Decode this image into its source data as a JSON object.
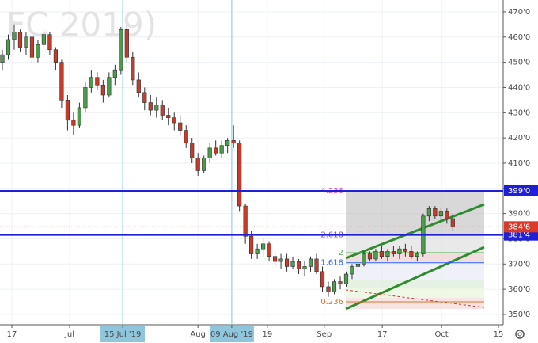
{
  "chart_data": {
    "type": "candlestick",
    "watermark": "FC 2019)",
    "x": [
      0,
      1,
      2,
      3,
      4,
      5,
      6,
      7,
      8,
      9,
      10,
      11,
      12,
      13,
      14,
      15,
      16,
      17,
      18,
      19,
      20,
      21,
      22,
      23,
      24,
      25,
      26,
      27,
      28,
      29,
      30,
      31,
      32,
      33,
      34,
      35,
      36,
      37,
      38,
      39,
      40,
      41,
      42,
      43,
      44,
      45,
      46,
      47,
      48,
      49,
      50,
      51,
      52,
      53,
      54,
      55,
      56,
      57,
      58,
      59,
      60,
      61,
      62,
      63,
      64,
      65,
      66,
      67,
      68,
      69,
      70,
      71,
      72,
      73,
      74,
      75,
      76
    ],
    "open": [
      450,
      453,
      459,
      462,
      456,
      460,
      452,
      457,
      461,
      455,
      450,
      435,
      427,
      425,
      432,
      440,
      444,
      441,
      437,
      444,
      447,
      463,
      452,
      443,
      438,
      434,
      431,
      433,
      429,
      428,
      426,
      423,
      418,
      412,
      407,
      412,
      416,
      414,
      417,
      419,
      418,
      393,
      381,
      374,
      376,
      378,
      373,
      371,
      372,
      369,
      371,
      368,
      369,
      372,
      367,
      361,
      359,
      363,
      362,
      366,
      369,
      370,
      374,
      372,
      375,
      373,
      375,
      374,
      376,
      375,
      373,
      374,
      389,
      392,
      389,
      391,
      388
    ],
    "high": [
      455,
      461,
      465,
      463,
      462,
      461,
      459,
      463,
      462,
      456,
      451,
      437,
      430,
      434,
      442,
      447,
      446,
      443,
      446,
      449,
      464,
      465,
      454,
      446,
      440,
      437,
      436,
      435,
      432,
      430,
      429,
      425,
      420,
      414,
      413,
      418,
      419,
      419,
      420,
      425,
      419,
      394,
      383,
      378,
      380,
      379,
      375,
      374,
      374,
      373,
      372,
      371,
      373,
      374,
      369,
      363,
      364,
      365,
      367,
      370,
      372,
      375,
      375,
      376,
      377,
      376,
      377,
      377,
      378,
      377,
      375,
      390,
      393,
      393,
      392,
      392,
      390
    ],
    "low": [
      447,
      451,
      455,
      454,
      453,
      450,
      450,
      455,
      453,
      447,
      432,
      423,
      421,
      424,
      430,
      438,
      439,
      434,
      436,
      441,
      445,
      450,
      441,
      436,
      431,
      429,
      428,
      427,
      425,
      423,
      421,
      416,
      410,
      405,
      406,
      410,
      413,
      412,
      414,
      416,
      391,
      378,
      372,
      372,
      373,
      371,
      369,
      368,
      367,
      368,
      366,
      365,
      367,
      366,
      359,
      357,
      358,
      360,
      361,
      364,
      367,
      369,
      371,
      371,
      372,
      371,
      373,
      372,
      373,
      372,
      371,
      373,
      387,
      388,
      387,
      386,
      383
    ],
    "close": [
      453,
      459,
      462,
      456,
      460,
      452,
      457,
      461,
      455,
      450,
      435,
      427,
      425,
      432,
      440,
      444,
      441,
      437,
      444,
      447,
      463,
      452,
      443,
      438,
      434,
      431,
      433,
      429,
      428,
      426,
      423,
      418,
      412,
      407,
      412,
      416,
      414,
      417,
      419,
      418,
      393,
      381,
      374,
      376,
      378,
      373,
      371,
      372,
      369,
      371,
      368,
      369,
      372,
      367,
      361,
      359,
      363,
      362,
      366,
      369,
      370,
      374,
      372,
      375,
      373,
      375,
      374,
      376,
      375,
      373,
      374,
      389,
      392,
      389,
      391,
      388,
      384.75
    ],
    "up_color": "#4e9a4e",
    "down_color": "#c33b2b",
    "xlim": [
      -0.4,
      84.5
    ],
    "xticks": [
      {
        "value": 1.6,
        "label": "17"
      },
      {
        "value": 11.35,
        "label": "Jul"
      },
      {
        "value": 20.3,
        "label": "15 Jul '19",
        "highlight": true
      },
      {
        "value": 33,
        "label": "Aug"
      },
      {
        "value": 38.7,
        "label": "09 Aug '19",
        "highlight": true
      },
      {
        "value": 44.7,
        "label": "19"
      },
      {
        "value": 54.3,
        "label": "Sep"
      },
      {
        "value": 64.1,
        "label": "17"
      },
      {
        "value": 74.1,
        "label": "Oct"
      },
      {
        "value": 83.7,
        "label": "15"
      }
    ],
    "ylim": [
      345.9,
      474.7
    ],
    "yticks": [
      {
        "value": 350,
        "label": "350'0"
      },
      {
        "value": 360,
        "label": "360'0"
      },
      {
        "value": 370,
        "label": "370'0"
      },
      {
        "value": 380,
        "label": "380'0"
      },
      {
        "value": 390,
        "label": "390'0"
      },
      {
        "value": 400,
        "label": "400'0"
      },
      {
        "value": 410,
        "label": "410'0"
      },
      {
        "value": 420,
        "label": "420'0"
      },
      {
        "value": 430,
        "label": "430'0"
      },
      {
        "value": 440,
        "label": "440'0"
      },
      {
        "value": 450,
        "label": "450'0"
      },
      {
        "value": 460,
        "label": "460'0"
      },
      {
        "value": 470,
        "label": "470'0"
      }
    ],
    "grid": true,
    "hlines": [
      {
        "value": 399,
        "label": "399'0",
        "color": "#1f1fd6"
      },
      {
        "value": 381.5,
        "label": "381'4",
        "color": "#1f1fd6"
      }
    ],
    "last_price": {
      "value": 384.75,
      "label": "384'6",
      "color": "#d93a2b"
    },
    "fib_levels": [
      {
        "value": 399,
        "label": "4.236",
        "color": "#d64fd6"
      },
      {
        "value": 381.5,
        "label": "2.618",
        "color": "#7a4fd6"
      },
      {
        "value": 374.5,
        "label": "2",
        "color": "#4caf50"
      },
      {
        "value": 370.5,
        "label": "1.618",
        "color": "#2962ff"
      },
      {
        "value": 355,
        "label": "0.236",
        "color": "#e0702a"
      }
    ]
  }
}
